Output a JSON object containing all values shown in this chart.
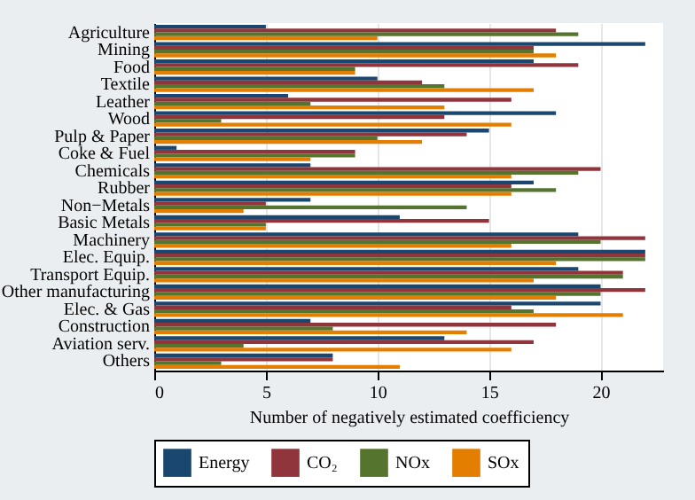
{
  "chart_data": {
    "type": "bar",
    "orientation": "horizontal",
    "xlabel": "Number of negatively estimated coefficiency",
    "categories": [
      "Agriculture",
      "Mining",
      "Food",
      "Textile",
      "Leather",
      "Wood",
      "Pulp & Paper",
      "Coke & Fuel",
      "Chemicals",
      "Rubber",
      "Non−Metals",
      "Basic Metals",
      "Machinery",
      "Elec. Equip.",
      "Transport Equip.",
      "Other manufacturing",
      "Elec. & Gas",
      "Construction",
      "Aviation serv.",
      "Others"
    ],
    "series": [
      {
        "name": "Energy",
        "color": "#1a476f",
        "values": [
          5,
          22,
          17,
          10,
          6,
          18,
          15,
          1,
          7,
          17,
          7,
          11,
          19,
          22,
          19,
          20,
          20,
          7,
          13,
          8
        ]
      },
      {
        "name": "CO₂",
        "color": "#90353b",
        "values": [
          18,
          17,
          19,
          12,
          16,
          13,
          14,
          9,
          20,
          16,
          5,
          15,
          22,
          22,
          21,
          22,
          16,
          18,
          17,
          8
        ]
      },
      {
        "name": "NOx",
        "color": "#55752f",
        "values": [
          19,
          17,
          9,
          13,
          7,
          3,
          10,
          9,
          19,
          18,
          14,
          5,
          20,
          22,
          21,
          20,
          17,
          8,
          4,
          3
        ]
      },
      {
        "name": "SOx",
        "color": "#e37e00",
        "values": [
          10,
          18,
          9,
          17,
          13,
          16,
          12,
          7,
          16,
          16,
          4,
          5,
          16,
          18,
          17,
          18,
          21,
          14,
          16,
          11
        ]
      }
    ],
    "xlim": [
      0,
      22.8
    ],
    "xticks": [
      0,
      5,
      10,
      15,
      20
    ],
    "grid": "x",
    "legend": "bottom"
  }
}
